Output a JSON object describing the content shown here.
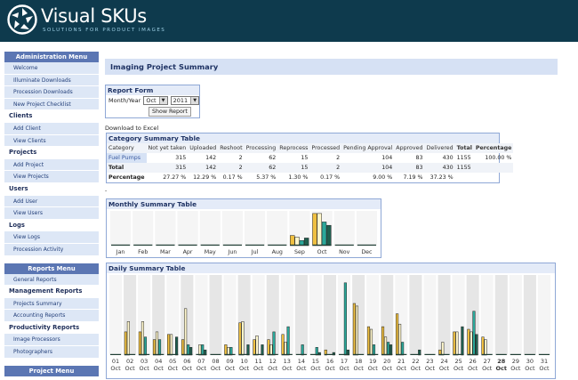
{
  "header": {
    "brand": "Visual SKUs",
    "tagline": "SOLUTIONS FOR PRODUCT IMAGES"
  },
  "sidebar": {
    "admin_title": "Administration Menu",
    "admin_items": [
      "Welcome",
      "Illuminate Downloads",
      "Procession Downloads",
      "New Project Checklist"
    ],
    "clients_label": "Clients",
    "clients_items": [
      "Add Client",
      "View Clients"
    ],
    "projects_label": "Projects",
    "projects_items": [
      "Add Project",
      "View Projects"
    ],
    "users_label": "Users",
    "users_items": [
      "Add User",
      "View Users"
    ],
    "logs_label": "Logs",
    "logs_items": [
      "View Logs",
      "Procession Activity"
    ],
    "reports_title": "Reports Menu",
    "reports_items": [
      "General Reports"
    ],
    "mgmt_label": "Management Reports",
    "mgmt_items": [
      "Projects Summary",
      "Accounting Reports"
    ],
    "prod_label": "Productivity Reports",
    "prod_items": [
      "Image Processors",
      "Photographers"
    ],
    "project_title": "Project Menu"
  },
  "page": {
    "title": "Imaging Project Summary",
    "download_label": "Download to Excel",
    "separator": "-"
  },
  "report_form": {
    "title": "Report Form",
    "month_year_label": "Month/Year",
    "month": "Oct",
    "year": "2011",
    "show_label": "Show Report"
  },
  "category_table": {
    "title": "Category Summary Table",
    "headers": [
      "Category",
      "Not yet taken",
      "Uploaded",
      "Reshoot",
      "Processing",
      "Reprocess",
      "Processed",
      "Pending Approval",
      "Approved",
      "Delivered",
      "Total",
      "Percentage"
    ],
    "rows": [
      [
        "Fuel Pumps",
        "315",
        "142",
        "2",
        "62",
        "15",
        "2",
        "104",
        "83",
        "430",
        "1155",
        "100.00 %"
      ],
      [
        "Total",
        "315",
        "142",
        "2",
        "62",
        "15",
        "2",
        "104",
        "83",
        "430",
        "1155",
        ""
      ],
      [
        "Percentage",
        "27.27 %",
        "12.29 %",
        "0.17 %",
        "5.37 %",
        "1.30 %",
        "0.17 %",
        "9.00 %",
        "7.19 %",
        "37.23 %",
        "",
        ""
      ]
    ]
  },
  "monthly": {
    "title": "Monthly Summary Table"
  },
  "daily": {
    "title": "Daily Summary Table",
    "month_label": "Oct"
  },
  "chart_data": [
    {
      "type": "bar",
      "title": "Monthly Summary Table",
      "categories": [
        "Jan",
        "Feb",
        "Mar",
        "Apr",
        "May",
        "Jun",
        "Jul",
        "Aug",
        "Sep",
        "Oct",
        "Nov",
        "Dec"
      ],
      "series": [
        {
          "color": "#f0c040",
          "values": [
            0,
            0,
            0,
            0,
            0,
            0,
            0,
            0,
            12,
            38,
            0,
            0
          ]
        },
        {
          "color": "#fff7cc",
          "values": [
            0,
            0,
            0,
            0,
            0,
            0,
            0,
            0,
            10,
            38,
            0,
            0
          ]
        },
        {
          "color": "#2aa89a",
          "values": [
            0,
            0,
            0,
            0,
            0,
            0,
            0,
            0,
            6,
            28,
            0,
            0
          ]
        },
        {
          "color": "#1f5f4f",
          "values": [
            0,
            0,
            0,
            0,
            0,
            0,
            0,
            0,
            9,
            24,
            0,
            0
          ]
        }
      ]
    },
    {
      "type": "bar",
      "title": "Daily Summary Table",
      "categories": [
        "01",
        "02",
        "03",
        "04",
        "05",
        "06",
        "07",
        "08",
        "09",
        "10",
        "11",
        "12",
        "13",
        "14",
        "15",
        "16",
        "17",
        "18",
        "19",
        "20",
        "21",
        "22",
        "23",
        "24",
        "25",
        "26",
        "27",
        "28",
        "29",
        "30",
        "31"
      ],
      "series": [
        {
          "color": "#f0c040",
          "values": [
            0,
            18,
            18,
            12,
            16,
            12,
            0,
            0,
            8,
            25,
            12,
            12,
            16,
            0,
            0,
            4,
            0,
            40,
            22,
            22,
            32,
            0,
            0,
            4,
            18,
            20,
            14,
            0,
            0,
            0,
            0
          ]
        },
        {
          "color": "#fff7cc",
          "values": [
            0,
            26,
            26,
            18,
            16,
            36,
            8,
            0,
            6,
            26,
            15,
            8,
            10,
            0,
            0,
            0,
            0,
            38,
            20,
            14,
            24,
            0,
            0,
            10,
            18,
            18,
            12,
            0,
            0,
            0,
            0
          ]
        },
        {
          "color": "#2aa89a",
          "values": [
            0,
            0,
            14,
            12,
            0,
            8,
            8,
            0,
            6,
            0,
            0,
            18,
            22,
            8,
            6,
            0,
            56,
            0,
            8,
            10,
            10,
            0,
            0,
            0,
            0,
            34,
            0,
            0,
            0,
            0,
            0
          ]
        },
        {
          "color": "#1f5f4f",
          "values": [
            0,
            0,
            0,
            0,
            14,
            6,
            4,
            0,
            0,
            8,
            8,
            0,
            0,
            0,
            2,
            2,
            4,
            0,
            0,
            8,
            0,
            4,
            0,
            0,
            22,
            16,
            0,
            0,
            0,
            0,
            0
          ]
        }
      ]
    }
  ]
}
